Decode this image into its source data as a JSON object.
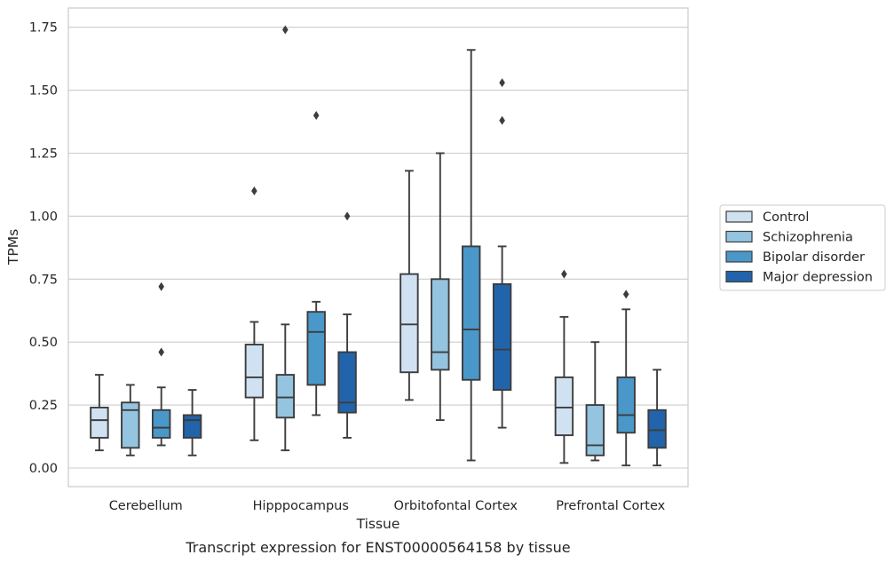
{
  "chart_data": {
    "type": "boxplot",
    "caption": "Transcript expression for ENST00000564158 by tissue",
    "xlabel": "Tissue",
    "ylabel": "TPMs",
    "ylim": [
      -0.07,
      1.83
    ],
    "yticks": [
      "0.00",
      "0.25",
      "0.50",
      "0.75",
      "1.00",
      "1.25",
      "1.50",
      "1.75"
    ],
    "grid": "horizontal",
    "legend_position": "right",
    "categories": [
      "Cerebellum",
      "Hipppocampus",
      "Orbitofontal Cortex",
      "Prefrontal Cortex"
    ],
    "series": [
      {
        "name": "Control",
        "color": "#d0e1f2",
        "boxes": [
          {
            "whislo": 0.07,
            "q1": 0.12,
            "med": 0.19,
            "q3": 0.24,
            "whishi": 0.37,
            "fliers": []
          },
          {
            "whislo": 0.11,
            "q1": 0.28,
            "med": 0.36,
            "q3": 0.49,
            "whishi": 0.58,
            "fliers": [
              1.1
            ]
          },
          {
            "whislo": 0.27,
            "q1": 0.38,
            "med": 0.57,
            "q3": 0.77,
            "whishi": 1.18,
            "fliers": []
          },
          {
            "whislo": 0.02,
            "q1": 0.13,
            "med": 0.24,
            "q3": 0.36,
            "whishi": 0.6,
            "fliers": [
              0.77
            ]
          }
        ]
      },
      {
        "name": "Schizophrenia",
        "color": "#94c4df",
        "boxes": [
          {
            "whislo": 0.05,
            "q1": 0.08,
            "med": 0.23,
            "q3": 0.26,
            "whishi": 0.33,
            "fliers": []
          },
          {
            "whislo": 0.07,
            "q1": 0.2,
            "med": 0.28,
            "q3": 0.37,
            "whishi": 0.57,
            "fliers": [
              1.74
            ]
          },
          {
            "whislo": 0.19,
            "q1": 0.39,
            "med": 0.46,
            "q3": 0.75,
            "whishi": 1.25,
            "fliers": []
          },
          {
            "whislo": 0.03,
            "q1": 0.05,
            "med": 0.09,
            "q3": 0.25,
            "whishi": 0.5,
            "fliers": []
          }
        ]
      },
      {
        "name": "Bipolar disorder",
        "color": "#4a98c9",
        "boxes": [
          {
            "whislo": 0.09,
            "q1": 0.12,
            "med": 0.16,
            "q3": 0.23,
            "whishi": 0.32,
            "fliers": [
              0.46,
              0.72
            ]
          },
          {
            "whislo": 0.21,
            "q1": 0.33,
            "med": 0.54,
            "q3": 0.62,
            "whishi": 0.66,
            "fliers": [
              1.4
            ]
          },
          {
            "whislo": 0.03,
            "q1": 0.35,
            "med": 0.55,
            "q3": 0.88,
            "whishi": 1.66,
            "fliers": []
          },
          {
            "whislo": 0.01,
            "q1": 0.14,
            "med": 0.21,
            "q3": 0.36,
            "whishi": 0.63,
            "fliers": [
              0.69
            ]
          }
        ]
      },
      {
        "name": "Major depression",
        "color": "#2164ab",
        "boxes": [
          {
            "whislo": 0.05,
            "q1": 0.12,
            "med": 0.19,
            "q3": 0.21,
            "whishi": 0.31,
            "fliers": []
          },
          {
            "whislo": 0.12,
            "q1": 0.22,
            "med": 0.26,
            "q3": 0.46,
            "whishi": 0.61,
            "fliers": [
              1.0
            ]
          },
          {
            "whislo": 0.16,
            "q1": 0.31,
            "med": 0.47,
            "q3": 0.73,
            "whishi": 0.88,
            "fliers": [
              1.38,
              1.53
            ]
          },
          {
            "whislo": 0.01,
            "q1": 0.08,
            "med": 0.15,
            "q3": 0.23,
            "whishi": 0.39,
            "fliers": []
          }
        ]
      }
    ]
  }
}
